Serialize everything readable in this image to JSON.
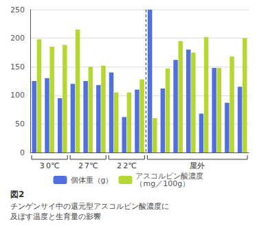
{
  "chart_data": {
    "type": "bar",
    "title": "図2",
    "subtitle": "チンゲンサイ中の還元型アスコルビン酸濃度に\n及ぼす温度と生育量の影響",
    "categories": [
      "3 0℃",
      null,
      null,
      "2 7℃",
      null,
      null,
      "2 2℃",
      null,
      null,
      "屋外",
      null,
      null,
      null,
      null,
      null,
      null,
      null
    ],
    "series": [
      {
        "name": "個体重（g）",
        "values": [
          125,
          130,
          95,
          120,
          125,
          118,
          140,
          62,
          110,
          250,
          112,
          162,
          180,
          68,
          148,
          87,
          115
        ]
      },
      {
        "name": "アスコルビン酸濃度\n（mg／100g）",
        "values": [
          198,
          185,
          188,
          215,
          150,
          152,
          105,
          105,
          128,
          60,
          147,
          195,
          175,
          202,
          148,
          168,
          200
        ]
      }
    ],
    "ylim": [
      0,
      250
    ],
    "yticks": [
      0,
      50,
      100,
      150,
      200,
      250
    ],
    "grid": true,
    "legend": "bottom"
  }
}
